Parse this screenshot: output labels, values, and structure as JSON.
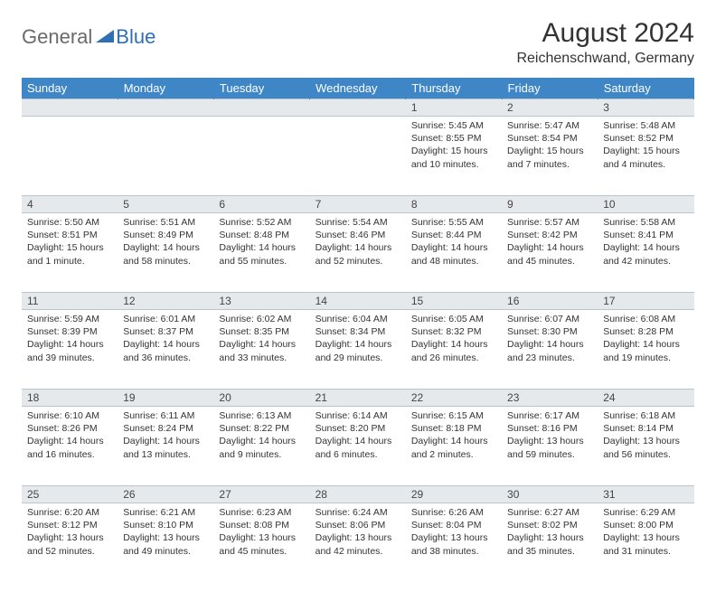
{
  "logo": {
    "general": "General",
    "blue": "Blue"
  },
  "title": "August 2024",
  "location": "Reichenschwand, Germany",
  "colors": {
    "header_bg": "#3f86c7",
    "header_text": "#ffffff",
    "daynum_bg": "#e6e9ec",
    "grid_line": "#b8c4ce",
    "body_text": "#333333",
    "logo_gray": "#6a6a6a",
    "logo_blue": "#2f6fb5"
  },
  "weekdays": [
    "Sunday",
    "Monday",
    "Tuesday",
    "Wednesday",
    "Thursday",
    "Friday",
    "Saturday"
  ],
  "weeks": [
    {
      "nums": [
        "",
        "",
        "",
        "",
        "1",
        "2",
        "3"
      ],
      "cells": [
        "",
        "",
        "",
        "",
        "Sunrise: 5:45 AM\nSunset: 8:55 PM\nDaylight: 15 hours and 10 minutes.",
        "Sunrise: 5:47 AM\nSunset: 8:54 PM\nDaylight: 15 hours and 7 minutes.",
        "Sunrise: 5:48 AM\nSunset: 8:52 PM\nDaylight: 15 hours and 4 minutes."
      ]
    },
    {
      "nums": [
        "4",
        "5",
        "6",
        "7",
        "8",
        "9",
        "10"
      ],
      "cells": [
        "Sunrise: 5:50 AM\nSunset: 8:51 PM\nDaylight: 15 hours and 1 minute.",
        "Sunrise: 5:51 AM\nSunset: 8:49 PM\nDaylight: 14 hours and 58 minutes.",
        "Sunrise: 5:52 AM\nSunset: 8:48 PM\nDaylight: 14 hours and 55 minutes.",
        "Sunrise: 5:54 AM\nSunset: 8:46 PM\nDaylight: 14 hours and 52 minutes.",
        "Sunrise: 5:55 AM\nSunset: 8:44 PM\nDaylight: 14 hours and 48 minutes.",
        "Sunrise: 5:57 AM\nSunset: 8:42 PM\nDaylight: 14 hours and 45 minutes.",
        "Sunrise: 5:58 AM\nSunset: 8:41 PM\nDaylight: 14 hours and 42 minutes."
      ]
    },
    {
      "nums": [
        "11",
        "12",
        "13",
        "14",
        "15",
        "16",
        "17"
      ],
      "cells": [
        "Sunrise: 5:59 AM\nSunset: 8:39 PM\nDaylight: 14 hours and 39 minutes.",
        "Sunrise: 6:01 AM\nSunset: 8:37 PM\nDaylight: 14 hours and 36 minutes.",
        "Sunrise: 6:02 AM\nSunset: 8:35 PM\nDaylight: 14 hours and 33 minutes.",
        "Sunrise: 6:04 AM\nSunset: 8:34 PM\nDaylight: 14 hours and 29 minutes.",
        "Sunrise: 6:05 AM\nSunset: 8:32 PM\nDaylight: 14 hours and 26 minutes.",
        "Sunrise: 6:07 AM\nSunset: 8:30 PM\nDaylight: 14 hours and 23 minutes.",
        "Sunrise: 6:08 AM\nSunset: 8:28 PM\nDaylight: 14 hours and 19 minutes."
      ]
    },
    {
      "nums": [
        "18",
        "19",
        "20",
        "21",
        "22",
        "23",
        "24"
      ],
      "cells": [
        "Sunrise: 6:10 AM\nSunset: 8:26 PM\nDaylight: 14 hours and 16 minutes.",
        "Sunrise: 6:11 AM\nSunset: 8:24 PM\nDaylight: 14 hours and 13 minutes.",
        "Sunrise: 6:13 AM\nSunset: 8:22 PM\nDaylight: 14 hours and 9 minutes.",
        "Sunrise: 6:14 AM\nSunset: 8:20 PM\nDaylight: 14 hours and 6 minutes.",
        "Sunrise: 6:15 AM\nSunset: 8:18 PM\nDaylight: 14 hours and 2 minutes.",
        "Sunrise: 6:17 AM\nSunset: 8:16 PM\nDaylight: 13 hours and 59 minutes.",
        "Sunrise: 6:18 AM\nSunset: 8:14 PM\nDaylight: 13 hours and 56 minutes."
      ]
    },
    {
      "nums": [
        "25",
        "26",
        "27",
        "28",
        "29",
        "30",
        "31"
      ],
      "cells": [
        "Sunrise: 6:20 AM\nSunset: 8:12 PM\nDaylight: 13 hours and 52 minutes.",
        "Sunrise: 6:21 AM\nSunset: 8:10 PM\nDaylight: 13 hours and 49 minutes.",
        "Sunrise: 6:23 AM\nSunset: 8:08 PM\nDaylight: 13 hours and 45 minutes.",
        "Sunrise: 6:24 AM\nSunset: 8:06 PM\nDaylight: 13 hours and 42 minutes.",
        "Sunrise: 6:26 AM\nSunset: 8:04 PM\nDaylight: 13 hours and 38 minutes.",
        "Sunrise: 6:27 AM\nSunset: 8:02 PM\nDaylight: 13 hours and 35 minutes.",
        "Sunrise: 6:29 AM\nSunset: 8:00 PM\nDaylight: 13 hours and 31 minutes."
      ]
    }
  ]
}
